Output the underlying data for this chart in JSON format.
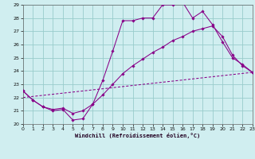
{
  "bg_color": "#d0eef0",
  "grid_color": "#99cccc",
  "line_color": "#880088",
  "xlim": [
    0,
    23
  ],
  "ylim": [
    20,
    29
  ],
  "xticks": [
    0,
    1,
    2,
    3,
    4,
    5,
    6,
    7,
    8,
    9,
    10,
    11,
    12,
    13,
    14,
    15,
    16,
    17,
    18,
    19,
    20,
    21,
    22,
    23
  ],
  "yticks": [
    20,
    21,
    22,
    23,
    24,
    25,
    26,
    27,
    28,
    29
  ],
  "xlabel": "Windchill (Refroidissement éolien,°C)",
  "line1_x": [
    0,
    1,
    2,
    3,
    4,
    5,
    6,
    7,
    8,
    9,
    10,
    11,
    12,
    13,
    14,
    15,
    16,
    17,
    18,
    19,
    20,
    21,
    22,
    23
  ],
  "line1_y": [
    22.5,
    21.8,
    21.3,
    21.0,
    21.1,
    20.3,
    20.4,
    21.5,
    23.3,
    25.5,
    27.8,
    27.8,
    28.0,
    28.0,
    29.0,
    29.0,
    29.2,
    28.0,
    28.5,
    27.5,
    26.2,
    25.0,
    24.5,
    23.9
  ],
  "line2_x": [
    0,
    1,
    2,
    3,
    4,
    5,
    6,
    7,
    8,
    9,
    10,
    11,
    12,
    13,
    14,
    15,
    16,
    17,
    18,
    19,
    20,
    21,
    22,
    23
  ],
  "line2_y": [
    22.5,
    21.8,
    21.3,
    21.1,
    21.2,
    20.8,
    21.0,
    21.5,
    22.2,
    23.0,
    23.8,
    24.4,
    24.9,
    25.4,
    25.8,
    26.3,
    26.6,
    27.0,
    27.2,
    27.4,
    26.6,
    25.2,
    24.4,
    23.9
  ],
  "line3_x": [
    0,
    23
  ],
  "line3_y": [
    22.0,
    23.9
  ]
}
